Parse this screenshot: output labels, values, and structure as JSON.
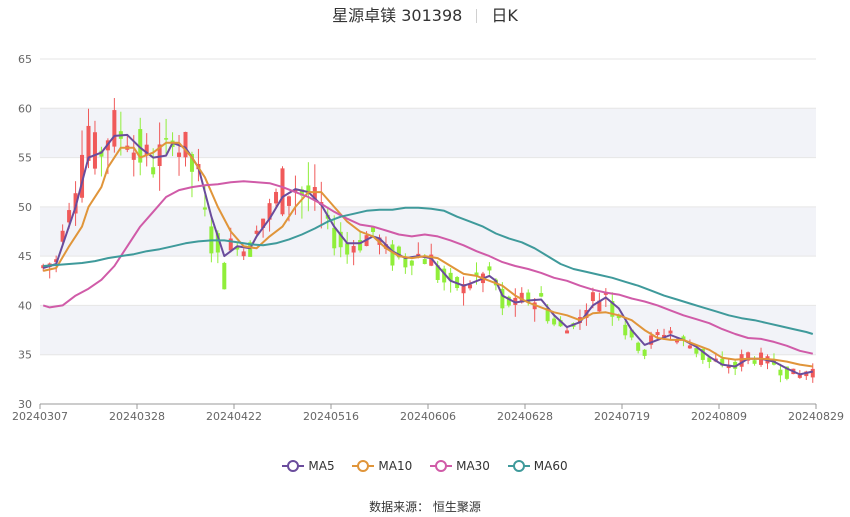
{
  "header": {
    "title": "星源卓镁 301398",
    "period": "日K"
  },
  "legend": {
    "items": [
      {
        "label": "MA5",
        "color": "#6a4c9c"
      },
      {
        "label": "MA10",
        "color": "#e0953a"
      },
      {
        "label": "MA30",
        "color": "#d05ba8"
      },
      {
        "label": "MA60",
        "color": "#3f9a9b"
      }
    ]
  },
  "footer": {
    "source": "数据来源： 恒生聚源"
  },
  "colors": {
    "up": "#f05a5a",
    "down": "#90ee3a",
    "grid": "#e6e6e6",
    "band": "#f2f3f8"
  },
  "chart_data": {
    "type": "candlestick",
    "title": "星源卓镁 301398",
    "ylim": [
      30,
      65
    ],
    "yticks": [
      30,
      35,
      40,
      45,
      50,
      55,
      60,
      65
    ],
    "xticks": [
      "20240307",
      "20240328",
      "20240422",
      "20240516",
      "20240606",
      "20240628",
      "20240719",
      "20240809",
      "20240829"
    ],
    "trading_days": 120,
    "grid": true,
    "legend_position": "bottom",
    "ohlc_summary": {
      "first_close": 43.5,
      "peak_high": 64.0,
      "last_close": 32.6,
      "min_low": 31.8
    },
    "series": [
      {
        "name": "MA5",
        "points": [
          [
            0,
            43.8
          ],
          [
            2,
            44.2
          ],
          [
            5,
            50
          ],
          [
            7,
            55
          ],
          [
            9,
            55.5
          ],
          [
            11,
            57.2
          ],
          [
            13,
            57.3
          ],
          [
            15,
            56
          ],
          [
            17,
            55
          ],
          [
            19,
            55.2
          ],
          [
            20,
            56.5
          ],
          [
            22,
            56
          ],
          [
            24,
            54
          ],
          [
            26,
            49
          ],
          [
            28,
            45
          ],
          [
            30,
            46
          ],
          [
            32,
            45.8
          ],
          [
            33,
            47
          ],
          [
            35,
            48.8
          ],
          [
            37,
            51
          ],
          [
            39,
            51.8
          ],
          [
            41,
            51.5
          ],
          [
            43,
            50.2
          ],
          [
            45,
            48
          ],
          [
            47,
            46.3
          ],
          [
            49,
            46.3
          ],
          [
            51,
            47
          ],
          [
            52,
            46.8
          ],
          [
            54,
            45.5
          ],
          [
            56,
            44.8
          ],
          [
            58,
            45
          ],
          [
            60,
            44.8
          ],
          [
            61,
            44
          ],
          [
            63,
            42.5
          ],
          [
            65,
            42
          ],
          [
            66,
            42.2
          ],
          [
            69,
            43
          ],
          [
            70,
            42.5
          ],
          [
            71,
            41
          ],
          [
            73,
            40.3
          ],
          [
            75,
            40.5
          ],
          [
            77,
            40.6
          ],
          [
            79,
            39
          ],
          [
            81,
            37.8
          ],
          [
            83,
            38.3
          ],
          [
            85,
            40
          ],
          [
            87,
            40.8
          ],
          [
            89,
            39.7
          ],
          [
            91,
            37.5
          ],
          [
            93,
            36
          ],
          [
            95,
            36.5
          ],
          [
            97,
            37
          ],
          [
            99,
            36.5
          ],
          [
            101,
            35.8
          ],
          [
            103,
            34.8
          ],
          [
            105,
            34
          ],
          [
            107,
            33.8
          ],
          [
            109,
            34.6
          ],
          [
            111,
            34.6
          ],
          [
            113,
            34.3
          ],
          [
            115,
            33.6
          ],
          [
            117,
            33
          ],
          [
            119,
            33.3
          ]
        ]
      },
      {
        "name": "MA10",
        "points": [
          [
            0,
            43.5
          ],
          [
            2,
            43.8
          ],
          [
            4,
            46
          ],
          [
            6,
            48
          ],
          [
            7,
            50
          ],
          [
            9,
            52
          ],
          [
            10,
            54
          ],
          [
            12,
            56
          ],
          [
            14,
            56
          ],
          [
            15,
            55
          ],
          [
            17,
            55.5
          ],
          [
            19,
            56.5
          ],
          [
            21,
            56.5
          ],
          [
            23,
            55
          ],
          [
            25,
            53
          ],
          [
            27,
            50
          ],
          [
            29,
            47.5
          ],
          [
            31,
            46
          ],
          [
            33,
            45.8
          ],
          [
            35,
            47
          ],
          [
            37,
            48
          ],
          [
            39,
            50
          ],
          [
            41,
            51.5
          ],
          [
            43,
            51.5
          ],
          [
            45,
            50
          ],
          [
            47,
            48.5
          ],
          [
            49,
            47.5
          ],
          [
            51,
            47
          ],
          [
            53,
            45.8
          ],
          [
            55,
            45
          ],
          [
            57,
            44.8
          ],
          [
            59,
            45
          ],
          [
            61,
            44.8
          ],
          [
            63,
            44
          ],
          [
            65,
            43.2
          ],
          [
            67,
            43
          ],
          [
            69,
            42.5
          ],
          [
            71,
            42
          ],
          [
            73,
            41
          ],
          [
            75,
            40.3
          ],
          [
            77,
            39.8
          ],
          [
            79,
            39.3
          ],
          [
            81,
            39
          ],
          [
            83,
            38.5
          ],
          [
            85,
            39.2
          ],
          [
            87,
            39.3
          ],
          [
            89,
            39
          ],
          [
            91,
            38.5
          ],
          [
            93,
            37.5
          ],
          [
            95,
            36.7
          ],
          [
            97,
            36.5
          ],
          [
            99,
            36.5
          ],
          [
            101,
            36
          ],
          [
            103,
            35.5
          ],
          [
            105,
            34.7
          ],
          [
            107,
            34.5
          ],
          [
            109,
            34.6
          ],
          [
            111,
            34.6
          ],
          [
            113,
            34.5
          ],
          [
            115,
            34.3
          ],
          [
            117,
            34
          ],
          [
            119,
            33.8
          ]
        ]
      },
      {
        "name": "MA30",
        "points": [
          [
            0,
            40
          ],
          [
            1,
            39.8
          ],
          [
            3,
            40
          ],
          [
            5,
            41
          ],
          [
            7,
            41.7
          ],
          [
            9,
            42.6
          ],
          [
            11,
            44
          ],
          [
            13,
            46
          ],
          [
            15,
            48
          ],
          [
            17,
            49.5
          ],
          [
            19,
            51
          ],
          [
            21,
            51.7
          ],
          [
            23,
            52
          ],
          [
            25,
            52.2
          ],
          [
            27,
            52.3
          ],
          [
            29,
            52.5
          ],
          [
            31,
            52.6
          ],
          [
            33,
            52.5
          ],
          [
            35,
            52.4
          ],
          [
            37,
            52
          ],
          [
            39,
            51.5
          ],
          [
            41,
            51
          ],
          [
            43,
            50.3
          ],
          [
            45,
            49.5
          ],
          [
            47,
            48.8
          ],
          [
            49,
            48.2
          ],
          [
            51,
            48
          ],
          [
            53,
            47.6
          ],
          [
            55,
            47.2
          ],
          [
            57,
            47
          ],
          [
            59,
            47.2
          ],
          [
            61,
            47
          ],
          [
            63,
            46.6
          ],
          [
            65,
            46.1
          ],
          [
            67,
            45.5
          ],
          [
            69,
            45
          ],
          [
            71,
            44.4
          ],
          [
            73,
            44
          ],
          [
            75,
            43.7
          ],
          [
            77,
            43.3
          ],
          [
            79,
            42.8
          ],
          [
            81,
            42.5
          ],
          [
            83,
            42
          ],
          [
            85,
            41.6
          ],
          [
            87,
            41.3
          ],
          [
            89,
            41.1
          ],
          [
            91,
            40.7
          ],
          [
            93,
            40.4
          ],
          [
            95,
            40
          ],
          [
            97,
            39.5
          ],
          [
            99,
            39
          ],
          [
            101,
            38.6
          ],
          [
            103,
            38.2
          ],
          [
            105,
            37.6
          ],
          [
            107,
            37.1
          ],
          [
            109,
            36.7
          ],
          [
            111,
            36.6
          ],
          [
            113,
            36.3
          ],
          [
            115,
            35.9
          ],
          [
            117,
            35.4
          ],
          [
            119,
            35.1
          ]
        ]
      },
      {
        "name": "MA60",
        "points": [
          [
            0,
            44
          ],
          [
            2,
            44.1
          ],
          [
            4,
            44.2
          ],
          [
            6,
            44.3
          ],
          [
            8,
            44.5
          ],
          [
            10,
            44.8
          ],
          [
            12,
            45
          ],
          [
            14,
            45.2
          ],
          [
            16,
            45.5
          ],
          [
            18,
            45.7
          ],
          [
            20,
            46
          ],
          [
            22,
            46.3
          ],
          [
            24,
            46.5
          ],
          [
            26,
            46.6
          ],
          [
            28,
            46.6
          ],
          [
            30,
            46.4
          ],
          [
            32,
            46.2
          ],
          [
            34,
            46.1
          ],
          [
            36,
            46.3
          ],
          [
            38,
            46.7
          ],
          [
            40,
            47.2
          ],
          [
            42,
            47.8
          ],
          [
            44,
            48.5
          ],
          [
            46,
            49
          ],
          [
            48,
            49.3
          ],
          [
            50,
            49.6
          ],
          [
            52,
            49.7
          ],
          [
            54,
            49.7
          ],
          [
            56,
            49.9
          ],
          [
            58,
            49.9
          ],
          [
            60,
            49.8
          ],
          [
            62,
            49.6
          ],
          [
            64,
            49
          ],
          [
            66,
            48.5
          ],
          [
            68,
            48
          ],
          [
            70,
            47.3
          ],
          [
            72,
            46.8
          ],
          [
            74,
            46.4
          ],
          [
            76,
            45.8
          ],
          [
            78,
            45
          ],
          [
            80,
            44.2
          ],
          [
            82,
            43.7
          ],
          [
            84,
            43.4
          ],
          [
            86,
            43.1
          ],
          [
            88,
            42.8
          ],
          [
            90,
            42.4
          ],
          [
            92,
            42
          ],
          [
            94,
            41.5
          ],
          [
            96,
            41
          ],
          [
            98,
            40.6
          ],
          [
            100,
            40.2
          ],
          [
            102,
            39.8
          ],
          [
            104,
            39.4
          ],
          [
            106,
            39
          ],
          [
            108,
            38.7
          ],
          [
            110,
            38.5
          ],
          [
            112,
            38.2
          ],
          [
            114,
            37.9
          ],
          [
            116,
            37.6
          ],
          [
            118,
            37.3
          ],
          [
            119,
            37.1
          ]
        ]
      }
    ]
  }
}
